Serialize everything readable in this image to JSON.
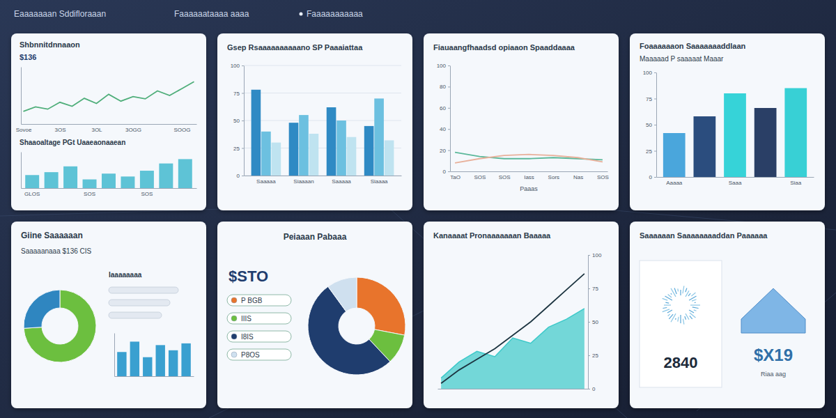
{
  "header": {
    "tabs": [
      "Eaaaaaaan Sddifloraaan",
      "Faaaaaataaaa aaaa",
      "Faaaaaaaaaaa"
    ]
  },
  "chart_data": [
    {
      "type": "line",
      "title": "Shbnnitdnnaaon",
      "subtitle": "$136",
      "categories": [
        "Sovoe",
        null,
        null,
        "3OS",
        null,
        null,
        "3OL",
        null,
        null,
        "3OGG",
        null,
        null,
        null,
        "SOOG",
        null
      ],
      "values": [
        22,
        30,
        26,
        38,
        31,
        45,
        36,
        52,
        40,
        48,
        44,
        58,
        50,
        62,
        74
      ],
      "color": "#4fae7a",
      "ylim": [
        0,
        100
      ],
      "tick_labels": "x"
    },
    {
      "type": "bar",
      "title": "Shaaoaltage PGt Uaaeaonaaean",
      "categories": [
        "GLOS",
        null,
        null,
        "SOS",
        null,
        null,
        "SOS",
        null,
        null
      ],
      "values": [
        18,
        22,
        30,
        12,
        20,
        16,
        24,
        34,
        40
      ],
      "color": "#5ec3d6",
      "ylim": [
        0,
        50
      ],
      "tick_labels": "x"
    },
    {
      "type": "bar",
      "title": "Gsep Rsaaaaaaaaaano SP Paaaiattaa",
      "categories": [
        "Saaaaa",
        "Siaaaan",
        "Saaaaa",
        "Siaaaa"
      ],
      "series": [
        {
          "color": "#2f8ac4",
          "values": [
            78,
            48,
            62,
            45
          ]
        },
        {
          "color": "#6cc0e0",
          "values": [
            40,
            55,
            50,
            70
          ]
        },
        {
          "color": "#bfe3f0",
          "values": [
            30,
            38,
            35,
            32
          ]
        }
      ],
      "ylim": [
        0,
        100
      ],
      "yticks": [
        0,
        25,
        50,
        75,
        100
      ],
      "grid": true
    },
    {
      "type": "line",
      "title": "Fiauaangfhaadsd opiaaon Spaaddaaaa",
      "xlabel": "Paaas",
      "categories": [
        "TaO",
        "SOS",
        "SOS",
        "Iass",
        "Sors",
        "Nas",
        "SOS"
      ],
      "series": [
        {
          "color": "#5bb89a",
          "values": [
            18,
            14,
            12,
            12,
            13,
            12,
            11
          ]
        },
        {
          "color": "#e8b09a",
          "values": [
            8,
            12,
            15,
            16,
            15,
            13,
            9
          ]
        }
      ],
      "ylim": [
        0,
        100
      ],
      "yticks": [
        0,
        20,
        40,
        60,
        80,
        100
      ]
    },
    {
      "type": "bar",
      "title": "Foaaaaaaon Saaaaaaaddlaan",
      "subtitle": "Maaaaad P saaaaat Maaar",
      "categories": [
        "Aaaaa",
        null,
        "Saaa",
        null,
        "Siaa"
      ],
      "values": [
        42,
        58,
        80,
        66,
        85
      ],
      "colors": [
        "#4aa6dc",
        "#2b4d7e",
        "#36d3d8",
        "#2a3f66",
        "#38d0d5"
      ],
      "ylim": [
        0,
        100
      ],
      "yticks": [
        0,
        25,
        50,
        75,
        100
      ]
    },
    {
      "type": "donut",
      "title": "Giine Saaaaaan",
      "subtitle": "Saaaaanaaa $136 CIS",
      "values": [
        74,
        26
      ],
      "colors": [
        "#6cbf3f",
        "#2f86c0"
      ]
    },
    {
      "type": "bar",
      "title": "Iaaaaaaaa",
      "values": [
        28,
        40,
        22,
        36,
        30,
        38
      ],
      "categories": [
        null,
        null,
        null,
        null,
        null,
        null
      ],
      "color": "#3aa0d0",
      "ylim": [
        0,
        50
      ],
      "tick_labels": false
    },
    {
      "type": "donut",
      "title": "Peiaaan Pabaaa",
      "annotations": [
        "$STO"
      ],
      "categories": [
        "P BGB",
        "IIIS",
        "I8IS",
        "P8OS"
      ],
      "values": [
        28,
        10,
        52,
        10
      ],
      "colors": [
        "#e8742c",
        "#6cbf3f",
        "#1f3d6e",
        "#cfe0ef"
      ],
      "legend": "left"
    },
    {
      "type": "area",
      "title": "Kanaaaat Pronaaaaaaan Baaaaa",
      "categories": [
        null,
        null,
        null,
        null,
        null,
        null,
        null,
        null,
        null
      ],
      "series": [
        {
          "type": "area",
          "color": "#3cc9c9",
          "values": [
            8,
            20,
            28,
            24,
            38,
            34,
            46,
            52,
            60
          ]
        },
        {
          "type": "line",
          "color": "#1c3440",
          "values": [
            4,
            14,
            22,
            30,
            40,
            50,
            62,
            74,
            86
          ]
        }
      ],
      "ylim": [
        0,
        100
      ],
      "yticks": [
        0,
        25,
        50,
        75,
        100
      ],
      "tick_labels": "y"
    }
  ],
  "kpi_panel": {
    "title": "Saaaaaan Saaaaaaaaddan Paaaaaa",
    "values": [
      "2840",
      "$X19"
    ],
    "caption": "Riaa aag"
  }
}
